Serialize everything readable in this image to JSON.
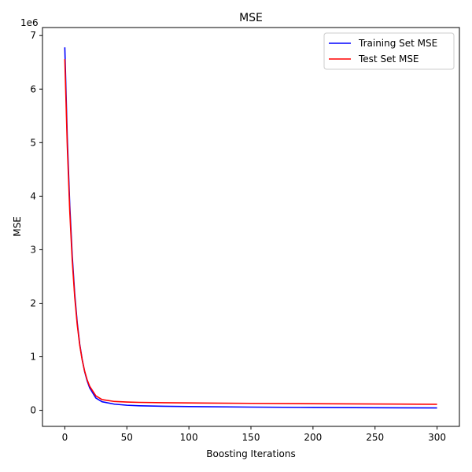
{
  "chart_data": {
    "type": "line",
    "title": "MSE",
    "xlabel": "Boosting Iterations",
    "ylabel": "MSE",
    "y_offset_label": "1e6",
    "xlim": [
      -18,
      318
    ],
    "ylim": [
      -300000,
      7150000
    ],
    "xticks": [
      0,
      50,
      100,
      150,
      200,
      250,
      300
    ],
    "yticks": [
      0,
      1000000,
      2000000,
      3000000,
      4000000,
      5000000,
      6000000,
      7000000
    ],
    "ytick_labels": [
      "0",
      "1",
      "2",
      "3",
      "4",
      "5",
      "6",
      "7"
    ],
    "grid": false,
    "legend": {
      "position": "top-right"
    },
    "series": [
      {
        "name": "Training Set MSE",
        "color": "#0000ff",
        "x": [
          0,
          2,
          4,
          6,
          8,
          10,
          12,
          14,
          16,
          18,
          20,
          25,
          30,
          40,
          50,
          60,
          80,
          100,
          150,
          200,
          250,
          300
        ],
        "y": [
          6780000,
          5080000,
          3830000,
          2880000,
          2170000,
          1640000,
          1240000,
          950000,
          720000,
          550000,
          420000,
          230000,
          160000,
          115000,
          95000,
          85000,
          75000,
          70000,
          60000,
          53000,
          48000,
          44000
        ]
      },
      {
        "name": "Test Set MSE",
        "color": "#ff0000",
        "x": [
          0,
          2,
          4,
          6,
          8,
          10,
          12,
          14,
          16,
          18,
          20,
          25,
          30,
          40,
          50,
          60,
          80,
          100,
          150,
          200,
          250,
          300
        ],
        "y": [
          6560000,
          4930000,
          3710000,
          2790000,
          2110000,
          1600000,
          1220000,
          940000,
          730000,
          570000,
          450000,
          270000,
          200000,
          165000,
          155000,
          148000,
          142000,
          138000,
          130000,
          124000,
          118000,
          113000
        ]
      }
    ]
  }
}
